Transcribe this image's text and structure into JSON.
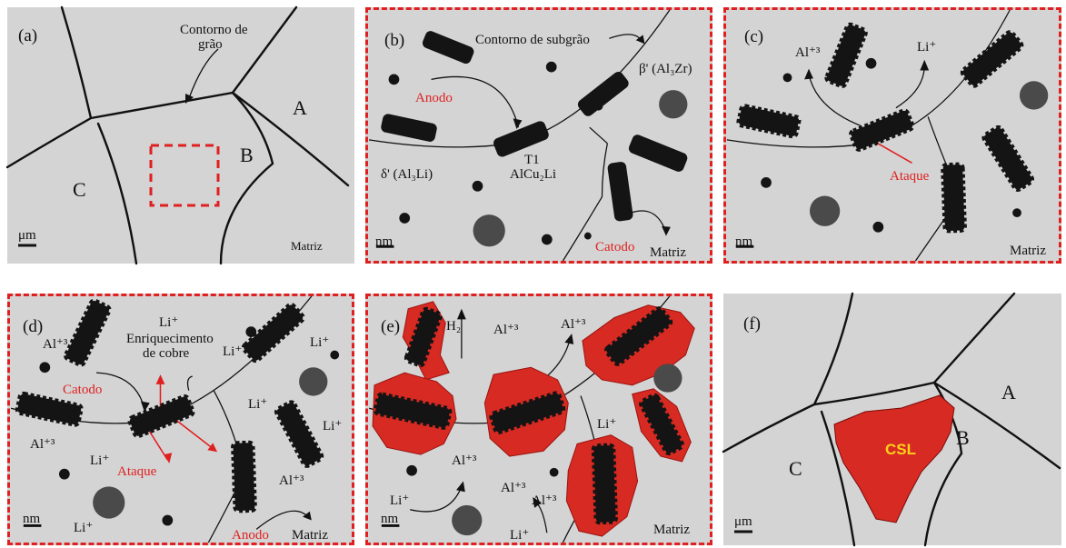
{
  "colors": {
    "background": "#d4d4d4",
    "particle": "#141414",
    "dispersoid": "#4a4a4a",
    "accent_red": "#e02020",
    "corroded": "#d62a22",
    "csl_text": "#ffd21a"
  },
  "panels": {
    "a": {
      "tag": "(a)",
      "boundary": "Contorno de grão",
      "boundary_l1": "Contorno de",
      "boundary_l2": "grão",
      "grain_a": "A",
      "grain_b": "B",
      "grain_c": "C",
      "scale": "μm",
      "matrix": "Matriz"
    },
    "b": {
      "tag": "(b)",
      "subgrain": "Contorno de subgrão",
      "beta": "β' (Al₃Zr)",
      "anode": "Anodo",
      "t1_l1": "T1",
      "t1_l2": "AlCu₂Li",
      "delta": "δ' (Al₃Li)",
      "cathode": "Catodo",
      "matrix": "Matriz",
      "scale": "nm"
    },
    "c": {
      "tag": "(c)",
      "al": "Al⁺³",
      "li": "Li⁺",
      "attack": "Ataque",
      "matrix": "Matriz",
      "scale": "nm"
    },
    "d": {
      "tag": "(d)",
      "al_1": "Al⁺³",
      "li_top": "Li⁺",
      "enrich_l1": "Enriquecimento",
      "enrich_l2": "de cobre",
      "li_1": "Li⁺",
      "li_2": "Li⁺",
      "cathode": "Catodo",
      "li_3": "Li⁺",
      "li_4": "Li⁺",
      "al_2": "Al⁺³",
      "li_5": "Li⁺",
      "attack": "Ataque",
      "al_3": "Al⁺³",
      "anode": "Anodo",
      "matrix": "Matriz",
      "li_6": "Li⁺",
      "scale": "nm"
    },
    "e": {
      "tag": "(e)",
      "h2": "H₂",
      "al_1": "Al⁺³",
      "al_2": "Al⁺³",
      "li_1": "Li⁺",
      "al_3": "Al⁺³",
      "li_2": "Li⁺",
      "al_4": "Al⁺³",
      "al_5": "Al⁺³",
      "li_3": "Li⁺",
      "matrix": "Matriz",
      "scale": "nm"
    },
    "f": {
      "tag": "(f)",
      "grain_a": "A",
      "grain_b": "B",
      "grain_c": "C",
      "csl": "CSL",
      "scale": "μm"
    }
  }
}
